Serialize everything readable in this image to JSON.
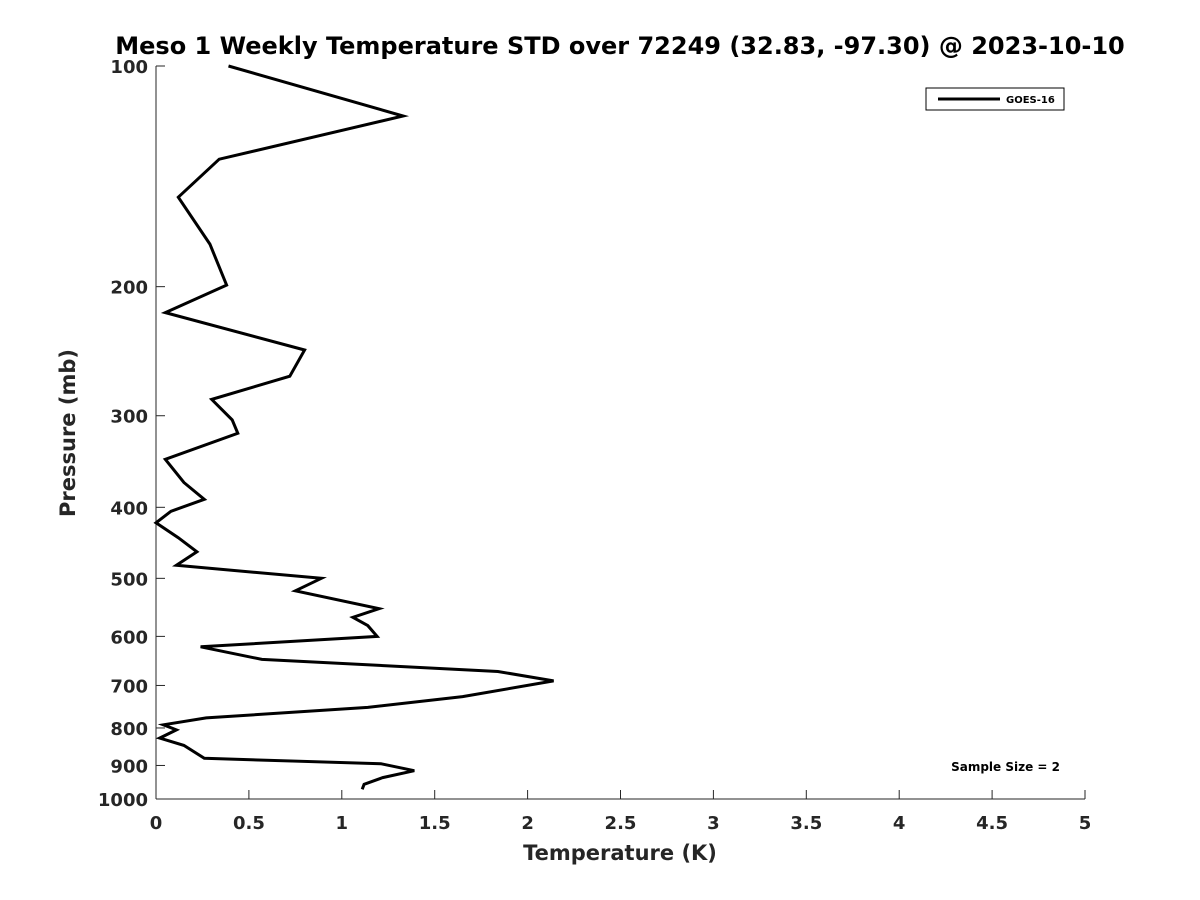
{
  "chart_data": {
    "type": "line",
    "title": "Meso 1 Weekly Temperature STD over 72249 (32.83, -97.30) @ 2023-10-10",
    "xlabel": "Temperature (K)",
    "ylabel": "Pressure (mb)",
    "xlim": [
      0,
      5
    ],
    "ylim": [
      100,
      1000
    ],
    "y_scale": "log",
    "y_reversed": true,
    "x_ticks": [
      0,
      0.5,
      1,
      1.5,
      2,
      2.5,
      3,
      3.5,
      4,
      4.5,
      5
    ],
    "x_tick_labels": [
      "0",
      "0.5",
      "1",
      "1.5",
      "2",
      "2.5",
      "3",
      "3.5",
      "4",
      "4.5",
      "5"
    ],
    "y_ticks": [
      100,
      200,
      300,
      400,
      500,
      600,
      700,
      800,
      900,
      1000
    ],
    "y_tick_labels": [
      "100",
      "200",
      "300",
      "400",
      "500",
      "600",
      "700",
      "800",
      "900",
      "1000"
    ],
    "grid": false,
    "legend_position": "top-right",
    "annotation": "Sample Size = 2",
    "series": [
      {
        "name": "GOES-16",
        "color": "#000000",
        "x": [
          0.39,
          1.33,
          0.34,
          0.12,
          0.29,
          0.38,
          0.05,
          0.8,
          0.72,
          0.3,
          0.41,
          0.44,
          0.05,
          0.15,
          0.26,
          0.08,
          0.0,
          0.12,
          0.22,
          0.11,
          0.89,
          0.75,
          1.2,
          1.06,
          1.14,
          1.19,
          0.24,
          0.57,
          1.84,
          2.14,
          1.65,
          1.14,
          0.27,
          0.04,
          0.11,
          0.02,
          0.15,
          0.26,
          1.21,
          1.39,
          1.22,
          1.12,
          1.11
        ],
        "y": [
          100,
          117,
          134,
          151,
          175,
          199,
          217,
          244,
          265,
          285,
          304,
          317,
          344,
          370,
          390,
          405,
          420,
          440,
          460,
          480,
          500,
          520,
          550,
          565,
          580,
          600,
          620,
          645,
          670,
          690,
          725,
          750,
          775,
          792,
          805,
          826,
          845,
          880,
          895,
          915,
          935,
          955,
          970
        ]
      }
    ]
  }
}
